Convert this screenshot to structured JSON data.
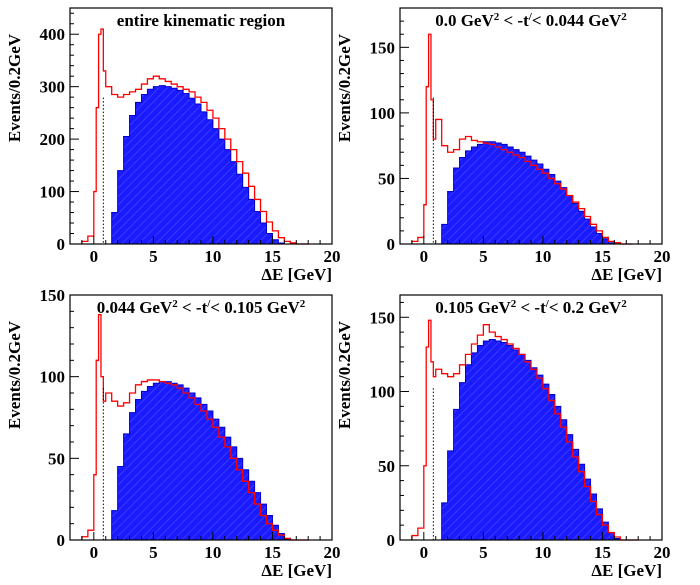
{
  "colors": {
    "fill": "#1a1aff",
    "fill_edge": "#0000cc",
    "line": "#ff0000"
  },
  "chart_data": [
    {
      "type": "bar",
      "title_parts": [
        "entire kinematic region"
      ],
      "xlabel": "ΔE  [GeV]",
      "ylabel": "Events/0.2GeV",
      "xlim": [
        -2,
        20
      ],
      "ylim": [
        0,
        450
      ],
      "xticks": [
        "0",
        "5",
        "10",
        "15",
        "20"
      ],
      "yticks": [
        "0",
        "100",
        "200",
        "300",
        "400"
      ],
      "cut_line_x": 0.8,
      "series": [
        {
          "style": "filled",
          "x": [
            -1.0,
            -0.5,
            0,
            0.5,
            1,
            1.5,
            2,
            2.5,
            3,
            3.5,
            4,
            4.5,
            5,
            5.5,
            6,
            6.5,
            7,
            7.5,
            8,
            8.5,
            9,
            9.5,
            10,
            10.5,
            11,
            11.5,
            12,
            12.5,
            13,
            13.5,
            14,
            14.5,
            15,
            15.5,
            16,
            16.5,
            17,
            17.5
          ],
          "y": [
            0,
            0,
            0,
            0,
            0,
            60,
            140,
            205,
            245,
            270,
            285,
            295,
            300,
            302,
            300,
            297,
            293,
            287,
            278,
            267,
            252,
            237,
            220,
            200,
            180,
            157,
            133,
            108,
            85,
            62,
            40,
            20,
            8,
            2,
            0,
            0,
            0,
            0
          ]
        },
        {
          "style": "step",
          "x": [
            -1.0,
            -0.5,
            0,
            0.2,
            0.4,
            0.6,
            0.8,
            1,
            1.5,
            2,
            2.5,
            3,
            3.5,
            4,
            4.5,
            5,
            5.5,
            6,
            6.5,
            7,
            7.5,
            8,
            8.5,
            9,
            9.5,
            10,
            10.5,
            11,
            11.5,
            12,
            12.5,
            13,
            13.5,
            14,
            14.5,
            15,
            15.5,
            16,
            16.5,
            17,
            17.5
          ],
          "y": [
            5,
            15,
            100,
            260,
            400,
            410,
            330,
            300,
            285,
            280,
            285,
            290,
            295,
            305,
            315,
            320,
            315,
            310,
            305,
            300,
            295,
            290,
            280,
            270,
            255,
            240,
            220,
            200,
            180,
            157,
            135,
            110,
            85,
            62,
            42,
            25,
            12,
            5,
            2,
            0,
            0
          ]
        }
      ]
    },
    {
      "type": "bar",
      "title_parts": [
        "0.0 GeV",
        "2",
        " < -t",
        "/",
        "< 0.044 GeV",
        "2"
      ],
      "xlabel": "ΔE  [GeV]",
      "ylabel": "Events/0.2GeV",
      "xlim": [
        -2,
        20
      ],
      "ylim": [
        0,
        180
      ],
      "xticks": [
        "0",
        "5",
        "10",
        "15",
        "20"
      ],
      "yticks": [
        "0",
        "50",
        "100",
        "150"
      ],
      "cut_line_x": 0.8,
      "series": [
        {
          "style": "filled",
          "x": [
            -1.0,
            -0.5,
            0,
            0.5,
            1,
            1.5,
            2,
            2.5,
            3,
            3.5,
            4,
            4.5,
            5,
            5.5,
            6,
            6.5,
            7,
            7.5,
            8,
            8.5,
            9,
            9.5,
            10,
            10.5,
            11,
            11.5,
            12,
            12.5,
            13,
            13.5,
            14,
            14.5,
            15,
            15.5,
            16,
            16.5,
            17
          ],
          "y": [
            0,
            0,
            0,
            0,
            0,
            15,
            40,
            58,
            66,
            71,
            74,
            76,
            78,
            78,
            77,
            76,
            74,
            72,
            70,
            67,
            64,
            61,
            57,
            53,
            48,
            43,
            37,
            31,
            25,
            19,
            13,
            8,
            4,
            1,
            0,
            0,
            0
          ]
        },
        {
          "style": "step",
          "x": [
            -1.0,
            -0.5,
            0,
            0.2,
            0.4,
            0.6,
            0.8,
            1,
            1.5,
            2,
            2.5,
            3,
            3.5,
            4,
            4.5,
            5,
            5.5,
            6,
            6.5,
            7,
            7.5,
            8,
            8.5,
            9,
            9.5,
            10,
            10.5,
            11,
            11.5,
            12,
            12.5,
            13,
            13.5,
            14,
            14.5,
            15,
            15.5,
            16,
            16.5,
            17
          ],
          "y": [
            2,
            5,
            30,
            120,
            160,
            110,
            80,
            95,
            75,
            70,
            72,
            80,
            82,
            79,
            78,
            77,
            76,
            74,
            72,
            70,
            68,
            66,
            63,
            60,
            57,
            54,
            50,
            46,
            42,
            37,
            32,
            27,
            21,
            15,
            10,
            5,
            2,
            1,
            0,
            0
          ]
        }
      ]
    },
    {
      "type": "bar",
      "title_parts": [
        "0.044 GeV",
        "2",
        " < -t",
        "/",
        "< 0.105 GeV",
        "2"
      ],
      "xlabel": "ΔE  [GeV]",
      "ylabel": "Events/0.2GeV",
      "xlim": [
        -2,
        20
      ],
      "ylim": [
        0,
        150
      ],
      "xticks": [
        "0",
        "5",
        "10",
        "15",
        "20"
      ],
      "yticks": [
        "0",
        "50",
        "100",
        "150"
      ],
      "cut_line_x": 0.8,
      "series": [
        {
          "style": "filled",
          "x": [
            -1.0,
            -0.5,
            0,
            0.5,
            1,
            1.5,
            2,
            2.5,
            3,
            3.5,
            4,
            4.5,
            5,
            5.5,
            6,
            6.5,
            7,
            7.5,
            8,
            8.5,
            9,
            9.5,
            10,
            10.5,
            11,
            11.5,
            12,
            12.5,
            13,
            13.5,
            14,
            14.5,
            15,
            15.5,
            16,
            16.5,
            17,
            17.5
          ],
          "y": [
            0,
            0,
            0,
            0,
            0,
            18,
            45,
            65,
            78,
            86,
            91,
            94,
            96,
            97,
            97,
            96,
            95,
            93,
            90,
            87,
            83,
            79,
            74,
            69,
            63,
            57,
            50,
            43,
            36,
            29,
            22,
            15,
            9,
            4,
            1,
            0,
            0,
            0
          ]
        },
        {
          "style": "step",
          "x": [
            -1.0,
            -0.5,
            0,
            0.2,
            0.4,
            0.6,
            0.8,
            1,
            1.5,
            2,
            2.5,
            3,
            3.5,
            4,
            4.5,
            5,
            5.5,
            6,
            6.5,
            7,
            7.5,
            8,
            8.5,
            9,
            9.5,
            10,
            10.5,
            11,
            11.5,
            12,
            12.5,
            13,
            13.5,
            14,
            14.5,
            15,
            15.5,
            16,
            16.5,
            17,
            17.5
          ],
          "y": [
            2,
            6,
            40,
            110,
            138,
            100,
            85,
            90,
            85,
            82,
            84,
            90,
            95,
            97,
            98,
            98,
            97,
            96,
            95,
            93,
            90,
            87,
            83,
            79,
            74,
            69,
            63,
            57,
            50,
            43,
            36,
            29,
            22,
            15,
            10,
            6,
            3,
            1,
            0,
            0,
            0
          ]
        }
      ]
    },
    {
      "type": "bar",
      "title_parts": [
        "0.105 GeV",
        "2",
        " < -t",
        "/",
        "< 0.2 GeV",
        "2"
      ],
      "xlabel": "ΔE  [GeV]",
      "ylabel": "Events/0.2GeV",
      "xlim": [
        -2,
        20
      ],
      "ylim": [
        0,
        165
      ],
      "xticks": [
        "0",
        "5",
        "10",
        "15",
        "20"
      ],
      "yticks": [
        "0",
        "50",
        "100",
        "150"
      ],
      "cut_line_x": 0.8,
      "series": [
        {
          "style": "filled",
          "x": [
            -1.0,
            -0.5,
            0,
            0.5,
            1,
            1.5,
            2,
            2.5,
            3,
            3.5,
            4,
            4.5,
            5,
            5.5,
            6,
            6.5,
            7,
            7.5,
            8,
            8.5,
            9,
            9.5,
            10,
            10.5,
            11,
            11.5,
            12,
            12.5,
            13,
            13.5,
            14,
            14.5,
            15,
            15.5,
            16,
            16.5,
            17,
            17.5
          ],
          "y": [
            0,
            0,
            0,
            0,
            0,
            25,
            60,
            88,
            106,
            118,
            126,
            131,
            134,
            135,
            134,
            133,
            131,
            128,
            125,
            121,
            116,
            111,
            105,
            98,
            90,
            81,
            71,
            61,
            51,
            41,
            31,
            21,
            12,
            5,
            1,
            0,
            0,
            0
          ]
        },
        {
          "style": "step",
          "x": [
            -1.0,
            -0.5,
            0,
            0.2,
            0.4,
            0.6,
            0.8,
            1,
            1.5,
            2,
            2.5,
            3,
            3.5,
            4,
            4.5,
            5,
            5.5,
            6,
            6.5,
            7,
            7.5,
            8,
            8.5,
            9,
            9.5,
            10,
            10.5,
            11,
            11.5,
            12,
            12.5,
            13,
            13.5,
            14,
            14.5,
            15,
            15.5,
            16,
            16.5,
            17,
            17.5
          ],
          "y": [
            3,
            8,
            50,
            130,
            148,
            120,
            110,
            115,
            112,
            110,
            112,
            118,
            125,
            132,
            138,
            145,
            140,
            137,
            135,
            132,
            129,
            125,
            120,
            115,
            109,
            102,
            94,
            85,
            76,
            66,
            56,
            46,
            36,
            26,
            17,
            10,
            5,
            2,
            0,
            0,
            0
          ]
        }
      ]
    }
  ]
}
